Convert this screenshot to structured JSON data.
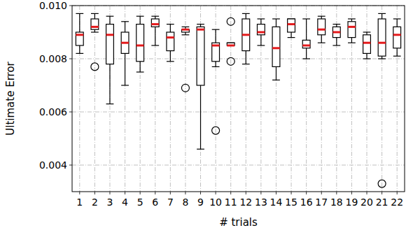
{
  "chart_data": {
    "type": "box",
    "x_label": "# trials",
    "y_label": "Ultimate Error",
    "categories": [
      "1",
      "2",
      "3",
      "4",
      "5",
      "6",
      "7",
      "8",
      "9",
      "10",
      "11",
      "12",
      "13",
      "14",
      "15",
      "16",
      "17",
      "18",
      "19",
      "20",
      "21",
      "22"
    ],
    "boxes": [
      {
        "low": 0.0082,
        "q1": 0.0085,
        "median": 0.0089,
        "q3": 0.009,
        "high": 0.0097,
        "outliers": []
      },
      {
        "low": 0.009,
        "q1": 0.0091,
        "median": 0.0092,
        "q3": 0.0095,
        "high": 0.0097,
        "outliers": [
          0.0077
        ]
      },
      {
        "low": 0.0063,
        "q1": 0.0078,
        "median": 0.0089,
        "q3": 0.0093,
        "high": 0.0096,
        "outliers": []
      },
      {
        "low": 0.007,
        "q1": 0.0082,
        "median": 0.0086,
        "q3": 0.009,
        "high": 0.0094,
        "outliers": []
      },
      {
        "low": 0.0075,
        "q1": 0.0079,
        "median": 0.0085,
        "q3": 0.0093,
        "high": 0.0096,
        "outliers": []
      },
      {
        "low": 0.0085,
        "q1": 0.0092,
        "median": 0.0093,
        "q3": 0.0095,
        "high": 0.0096,
        "outliers": []
      },
      {
        "low": 0.0079,
        "q1": 0.0083,
        "median": 0.0088,
        "q3": 0.009,
        "high": 0.0093,
        "outliers": []
      },
      {
        "low": 0.0089,
        "q1": 0.009,
        "median": 0.0091,
        "q3": 0.0091,
        "high": 0.0092,
        "outliers": [
          0.0069
        ]
      },
      {
        "low": 0.0046,
        "q1": 0.007,
        "median": 0.0091,
        "q3": 0.0092,
        "high": 0.0093,
        "outliers": []
      },
      {
        "low": 0.0077,
        "q1": 0.0079,
        "median": 0.0085,
        "q3": 0.0086,
        "high": 0.0091,
        "outliers": [
          0.0053
        ]
      },
      {
        "low": 0.0085,
        "q1": 0.0085,
        "median": 0.0085,
        "q3": 0.0086,
        "high": 0.0086,
        "outliers": [
          0.0094,
          0.0079
        ]
      },
      {
        "low": 0.0078,
        "q1": 0.0083,
        "median": 0.0089,
        "q3": 0.0095,
        "high": 0.0097,
        "outliers": []
      },
      {
        "low": 0.0085,
        "q1": 0.0089,
        "median": 0.009,
        "q3": 0.0093,
        "high": 0.0095,
        "outliers": []
      },
      {
        "low": 0.0072,
        "q1": 0.0077,
        "median": 0.0084,
        "q3": 0.0092,
        "high": 0.0095,
        "outliers": []
      },
      {
        "low": 0.0088,
        "q1": 0.009,
        "median": 0.0093,
        "q3": 0.0095,
        "high": 0.0095,
        "outliers": []
      },
      {
        "low": 0.008,
        "q1": 0.0084,
        "median": 0.0085,
        "q3": 0.0087,
        "high": 0.0095,
        "outliers": []
      },
      {
        "low": 0.0086,
        "q1": 0.0089,
        "median": 0.0091,
        "q3": 0.0095,
        "high": 0.0096,
        "outliers": []
      },
      {
        "low": 0.0085,
        "q1": 0.0088,
        "median": 0.009,
        "q3": 0.0092,
        "high": 0.0093,
        "outliers": []
      },
      {
        "low": 0.0086,
        "q1": 0.0088,
        "median": 0.0092,
        "q3": 0.0094,
        "high": 0.0095,
        "outliers": []
      },
      {
        "low": 0.008,
        "q1": 0.0082,
        "median": 0.0086,
        "q3": 0.0089,
        "high": 0.009,
        "outliers": []
      },
      {
        "low": 0.008,
        "q1": 0.0081,
        "median": 0.0086,
        "q3": 0.0095,
        "high": 0.0097,
        "outliers": [
          0.0033
        ]
      },
      {
        "low": 0.0081,
        "q1": 0.0084,
        "median": 0.0089,
        "q3": 0.0092,
        "high": 0.0095,
        "outliers": []
      }
    ],
    "color": "#e41a1c",
    "ylim": [
      0.003,
      0.01
    ],
    "yticks": [
      0.004,
      0.006,
      0.008,
      {
        "value": 0.01,
        "label": "0.010"
      }
    ],
    "grid": true
  }
}
